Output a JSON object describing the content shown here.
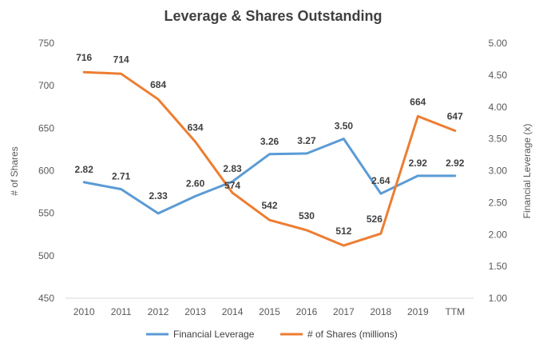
{
  "chart_data": {
    "type": "line",
    "title": "Leverage & Shares Outstanding",
    "categories": [
      "2010",
      "2011",
      "2012",
      "2013",
      "2014",
      "2015",
      "2016",
      "2017",
      "2018",
      "2019",
      "TTM"
    ],
    "y_left": {
      "label": "# of Shares",
      "range": [
        450,
        750
      ],
      "ticks": [
        "450",
        "500",
        "550",
        "600",
        "650",
        "700",
        "750"
      ]
    },
    "y_right": {
      "label": "Financial Leverage (x)",
      "range": [
        1.0,
        5.0
      ],
      "ticks": [
        "1.00",
        "1.50",
        "2.00",
        "2.50",
        "3.00",
        "3.50",
        "4.00",
        "4.50",
        "5.00"
      ]
    },
    "series": [
      {
        "name": "Financial Leverage",
        "axis": "right",
        "color": "#5B9BD5",
        "values": [
          2.82,
          2.71,
          2.33,
          2.6,
          2.83,
          3.26,
          3.27,
          3.5,
          2.64,
          2.92,
          2.92
        ],
        "labels": [
          "2.82",
          "2.71",
          "2.33",
          "2.60",
          "2.83",
          "3.26",
          "3.27",
          "3.50",
          "2.64",
          "2.92",
          "2.92"
        ]
      },
      {
        "name": "# of Shares (millions)",
        "axis": "left",
        "color": "#ED7D31",
        "values": [
          716,
          714,
          684,
          634,
          574,
          542,
          530,
          512,
          526,
          664,
          647
        ],
        "labels": [
          "716",
          "714",
          "684",
          "634",
          "574",
          "542",
          "530",
          "512",
          "526",
          "664",
          "647"
        ]
      }
    ],
    "grid": false,
    "legend_position": "bottom"
  }
}
